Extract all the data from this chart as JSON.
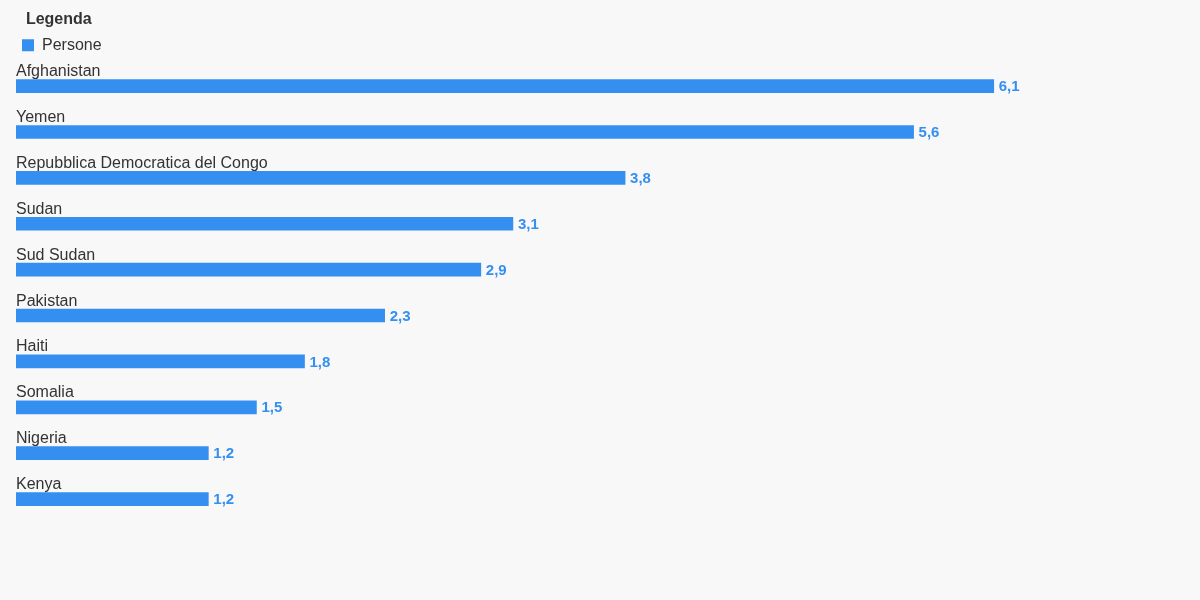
{
  "chart_data": {
    "type": "bar",
    "orientation": "horizontal",
    "legend": "top left",
    "legend_title": "Legenda",
    "categories": [
      "Afghanistan",
      "Yemen",
      "Repubblica Democratica del Congo",
      "Sudan",
      "Sud Sudan",
      "Pakistan",
      "Haiti",
      "Somalia",
      "Nigeria",
      "Kenya"
    ],
    "series": [
      {
        "name": "Persone",
        "color": "#358ff0",
        "values": [
          6.1,
          5.6,
          3.8,
          3.1,
          2.9,
          2.3,
          1.8,
          1.5,
          1.2,
          1.2
        ],
        "value_labels": [
          "6,1",
          "5,6",
          "3,8",
          "3,1",
          "2,9",
          "2,3",
          "1,8",
          "1,5",
          "1,2",
          "1,2"
        ]
      }
    ]
  }
}
